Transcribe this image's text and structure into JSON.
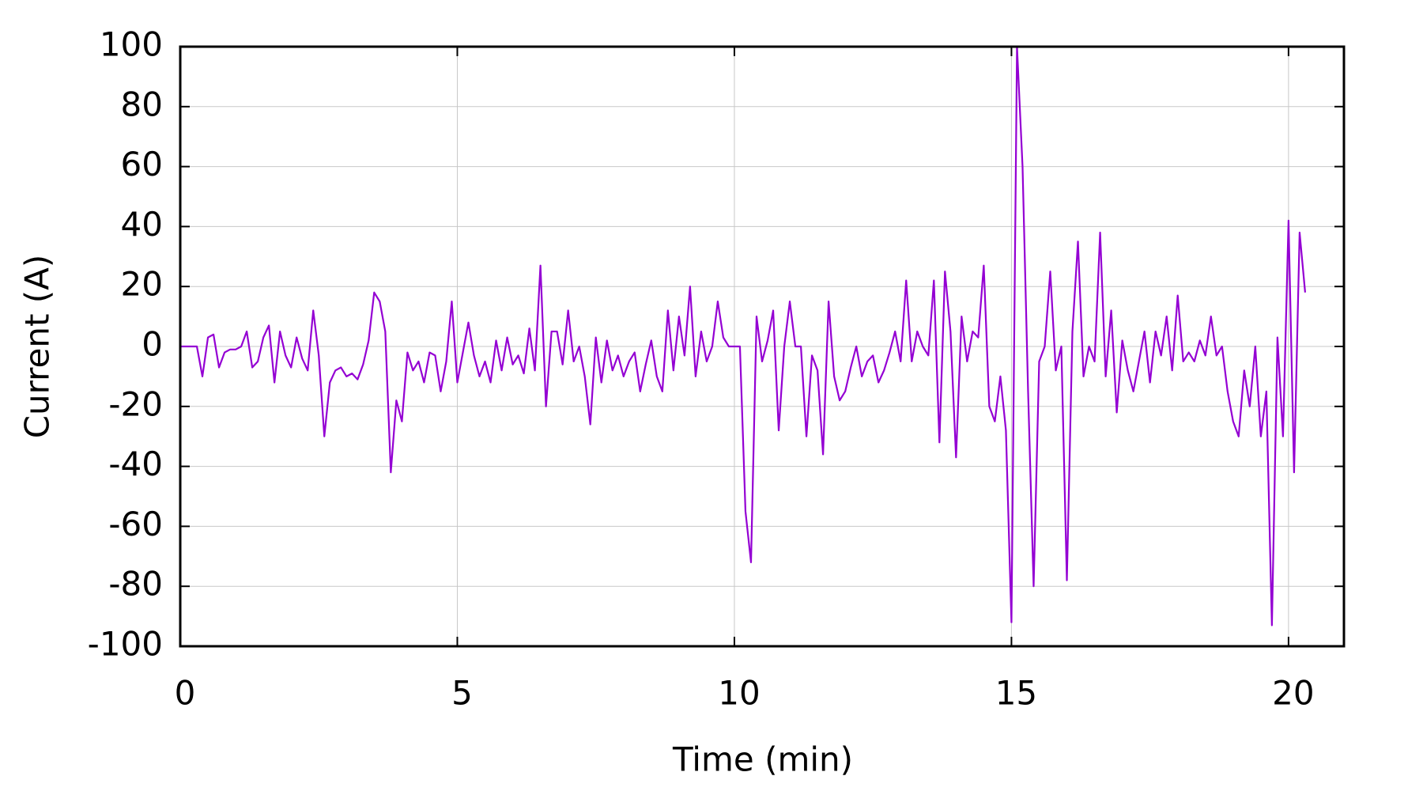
{
  "chart_data": {
    "type": "line",
    "xlabel": "Time (min)",
    "ylabel": "Current (A)",
    "x": [
      0,
      0.1,
      0.2,
      0.3,
      0.4,
      0.5,
      0.6,
      0.7,
      0.8,
      0.9,
      1,
      1.1,
      1.2,
      1.3,
      1.4,
      1.5,
      1.6,
      1.7,
      1.8,
      1.9,
      2,
      2.1,
      2.2,
      2.3,
      2.4,
      2.5,
      2.6,
      2.7,
      2.8,
      2.9,
      3,
      3.1,
      3.2,
      3.3,
      3.4,
      3.5,
      3.6,
      3.7,
      3.8,
      3.9,
      4,
      4.1,
      4.2,
      4.3,
      4.4,
      4.5,
      4.6,
      4.7,
      4.8,
      4.9,
      5,
      5.1,
      5.2,
      5.3,
      5.4,
      5.5,
      5.6,
      5.7,
      5.8,
      5.9,
      6,
      6.1,
      6.2,
      6.3,
      6.4,
      6.5,
      6.6,
      6.7,
      6.8,
      6.9,
      7,
      7.1,
      7.2,
      7.3,
      7.4,
      7.5,
      7.6,
      7.7,
      7.8,
      7.9,
      8,
      8.1,
      8.2,
      8.3,
      8.4,
      8.5,
      8.6,
      8.7,
      8.8,
      8.9,
      9,
      9.1,
      9.2,
      9.3,
      9.4,
      9.5,
      9.6,
      9.7,
      9.8,
      9.9,
      10,
      10.1,
      10.2,
      10.3,
      10.4,
      10.5,
      10.6,
      10.7,
      10.8,
      10.9,
      11,
      11.1,
      11.2,
      11.3,
      11.4,
      11.5,
      11.6,
      11.7,
      11.8,
      11.9,
      12,
      12.1,
      12.2,
      12.3,
      12.4,
      12.5,
      12.6,
      12.7,
      12.8,
      12.9,
      13,
      13.1,
      13.2,
      13.3,
      13.4,
      13.5,
      13.6,
      13.7,
      13.8,
      13.9,
      14,
      14.1,
      14.2,
      14.3,
      14.4,
      14.5,
      14.6,
      14.7,
      14.8,
      14.9,
      15,
      15.1,
      15.2,
      15.3,
      15.4,
      15.5,
      15.6,
      15.7,
      15.8,
      15.9,
      16,
      16.1,
      16.2,
      16.3,
      16.4,
      16.5,
      16.6,
      16.7,
      16.8,
      16.9,
      17,
      17.1,
      17.2,
      17.3,
      17.4,
      17.5,
      17.6,
      17.7,
      17.8,
      17.9,
      18,
      18.1,
      18.2,
      18.3,
      18.4,
      18.5,
      18.6,
      18.7,
      18.8,
      18.9,
      19,
      19.1,
      19.2,
      19.3,
      19.4,
      19.5,
      19.6,
      19.7,
      19.8,
      19.9,
      20,
      20.1,
      20.2,
      20.3
    ],
    "series": [
      {
        "color": "#9400d3",
        "values": [
          0,
          0,
          0,
          0,
          -10,
          3,
          4,
          -7,
          -2,
          -1,
          -1,
          0,
          5,
          -7,
          -5,
          3,
          7,
          -12,
          5,
          -3,
          -7,
          3,
          -4,
          -8,
          12,
          -3,
          -30,
          -12,
          -8,
          -7,
          -10,
          -9,
          -11,
          -6,
          2,
          18,
          15,
          5,
          -42,
          -18,
          -25,
          -2,
          -8,
          -5,
          -12,
          -2,
          -3,
          -15,
          -5,
          15,
          -12,
          -2,
          8,
          -3,
          -10,
          -5,
          -12,
          2,
          -8,
          3,
          -6,
          -3,
          -9,
          6,
          -8,
          27,
          -20,
          5,
          5,
          -6,
          12,
          -5,
          0,
          -10,
          -26,
          3,
          -12,
          2,
          -8,
          -3,
          -10,
          -5,
          -2,
          -15,
          -6,
          2,
          -10,
          -15,
          12,
          -8,
          10,
          -3,
          20,
          -10,
          5,
          -5,
          0,
          15,
          3,
          0,
          0,
          0,
          -55,
          -72,
          10,
          -5,
          2,
          12,
          -28,
          0,
          15,
          0,
          0,
          -30,
          -3,
          -8,
          -36,
          15,
          -10,
          -18,
          -15,
          -7,
          0,
          -10,
          -5,
          -3,
          -12,
          -8,
          -2,
          5,
          -5,
          22,
          -5,
          5,
          0,
          -3,
          22,
          -32,
          25,
          5,
          -37,
          10,
          -5,
          5,
          3,
          27,
          -20,
          -25,
          -10,
          -28,
          -92,
          100,
          60,
          -15,
          -80,
          -5,
          0,
          25,
          -8,
          0,
          -78,
          5,
          35,
          -10,
          0,
          -5,
          38,
          -10,
          12,
          -22,
          2,
          -8,
          -15,
          -5,
          5,
          -12,
          5,
          -3,
          10,
          -8,
          17,
          -5,
          -2,
          -5,
          2,
          -3,
          10,
          -3,
          0,
          -15,
          -25,
          -30,
          -8,
          -20,
          0,
          -30,
          -15,
          -93,
          3,
          -30,
          42,
          -42,
          38,
          18
        ]
      }
    ],
    "xlim": [
      0,
      21
    ],
    "ylim": [
      -100,
      100
    ],
    "xticks": [
      0,
      5,
      10,
      15,
      20
    ],
    "yticks": [
      -100,
      -80,
      -60,
      -40,
      -20,
      0,
      20,
      40,
      60,
      80,
      100
    ],
    "grid": true
  }
}
